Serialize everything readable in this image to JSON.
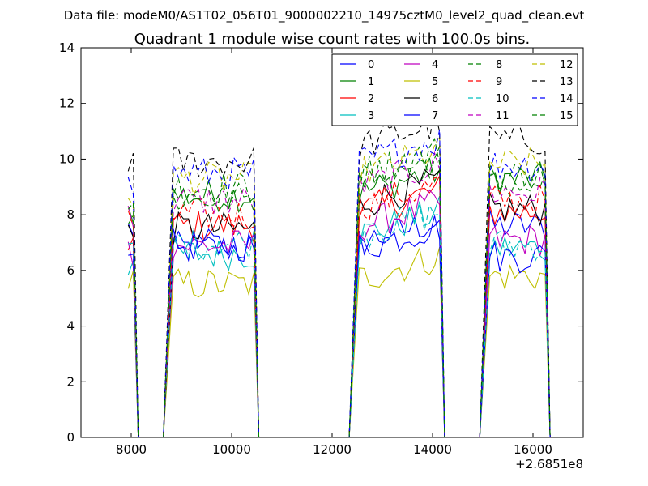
{
  "chart_data": {
    "type": "line",
    "suptitle": "Data file: modeM0/AS1T02_056T01_9000002210_14975cztM0_level2_quad_clean.evt",
    "title": "Quadrant 1 module wise count rates with 100.0s bins.",
    "xlabel": "",
    "ylabel": "",
    "xlim": [
      7000,
      17000
    ],
    "ylim": [
      0,
      14
    ],
    "x_ticks": [
      8000,
      10000,
      12000,
      14000,
      16000
    ],
    "x_tick_labels": [
      "8000",
      "10000",
      "12000",
      "14000",
      "16000"
    ],
    "y_ticks": [
      0,
      2,
      4,
      6,
      8,
      10,
      12,
      14
    ],
    "y_tick_labels": [
      "0",
      "2",
      "4",
      "6",
      "8",
      "10",
      "12",
      "14"
    ],
    "x_offset_label": "+2.6851e8",
    "legend_position": "top-right",
    "legend_columns": 4,
    "bin_width": 100,
    "segments": [
      {
        "start": 7940,
        "end": 8040
      },
      {
        "start": 8840,
        "end": 10440
      },
      {
        "start": 12540,
        "end": 14140
      },
      {
        "start": 15140,
        "end": 16240
      }
    ],
    "series": [
      {
        "name": "0",
        "color": "#0000ff",
        "style": "solid",
        "levels": [
          7.5,
          6.8,
          7.0,
          7.6
        ]
      },
      {
        "name": "1",
        "color": "#008000",
        "style": "solid",
        "levels": [
          8.2,
          8.7,
          8.8,
          9.3
        ]
      },
      {
        "name": "2",
        "color": "#ff0000",
        "style": "solid",
        "levels": [
          7.1,
          7.6,
          8.1,
          8.1
        ]
      },
      {
        "name": "3",
        "color": "#00bfbf",
        "style": "solid",
        "levels": [
          6.3,
          6.6,
          7.3,
          6.8
        ]
      },
      {
        "name": "4",
        "color": "#bf00bf",
        "style": "solid",
        "levels": [
          6.7,
          6.9,
          7.6,
          7.1
        ]
      },
      {
        "name": "5",
        "color": "#bfbf00",
        "style": "solid",
        "levels": [
          5.6,
          5.5,
          5.7,
          5.8
        ]
      },
      {
        "name": "6",
        "color": "#000000",
        "style": "solid",
        "levels": [
          7.3,
          7.5,
          8.4,
          8.2
        ]
      },
      {
        "name": "7",
        "color": "#0000ff",
        "style": "solid",
        "levels": [
          7.0,
          6.9,
          6.8,
          6.5
        ]
      },
      {
        "name": "8",
        "color": "#008000",
        "style": "dashed",
        "levels": [
          8.0,
          9.0,
          9.2,
          9.1
        ]
      },
      {
        "name": "9",
        "color": "#ff0000",
        "style": "dashed",
        "levels": [
          7.6,
          8.0,
          8.3,
          8.5
        ]
      },
      {
        "name": "10",
        "color": "#00bfbf",
        "style": "dashed",
        "levels": [
          6.6,
          7.0,
          7.3,
          6.9
        ]
      },
      {
        "name": "11",
        "color": "#bf00bf",
        "style": "dashed",
        "levels": [
          7.9,
          8.5,
          9.0,
          8.8
        ]
      },
      {
        "name": "12",
        "color": "#bfbf00",
        "style": "dashed",
        "levels": [
          8.8,
          9.3,
          9.5,
          9.8
        ]
      },
      {
        "name": "13",
        "color": "#000000",
        "style": "dashed",
        "levels": [
          10.0,
          9.9,
          10.5,
          10.7
        ]
      },
      {
        "name": "14",
        "color": "#0000ff",
        "style": "dashed",
        "levels": [
          9.0,
          9.5,
          9.9,
          9.8
        ]
      },
      {
        "name": "15",
        "color": "#008000",
        "style": "dashed",
        "levels": [
          8.2,
          8.6,
          9.5,
          9.4
        ]
      }
    ]
  }
}
